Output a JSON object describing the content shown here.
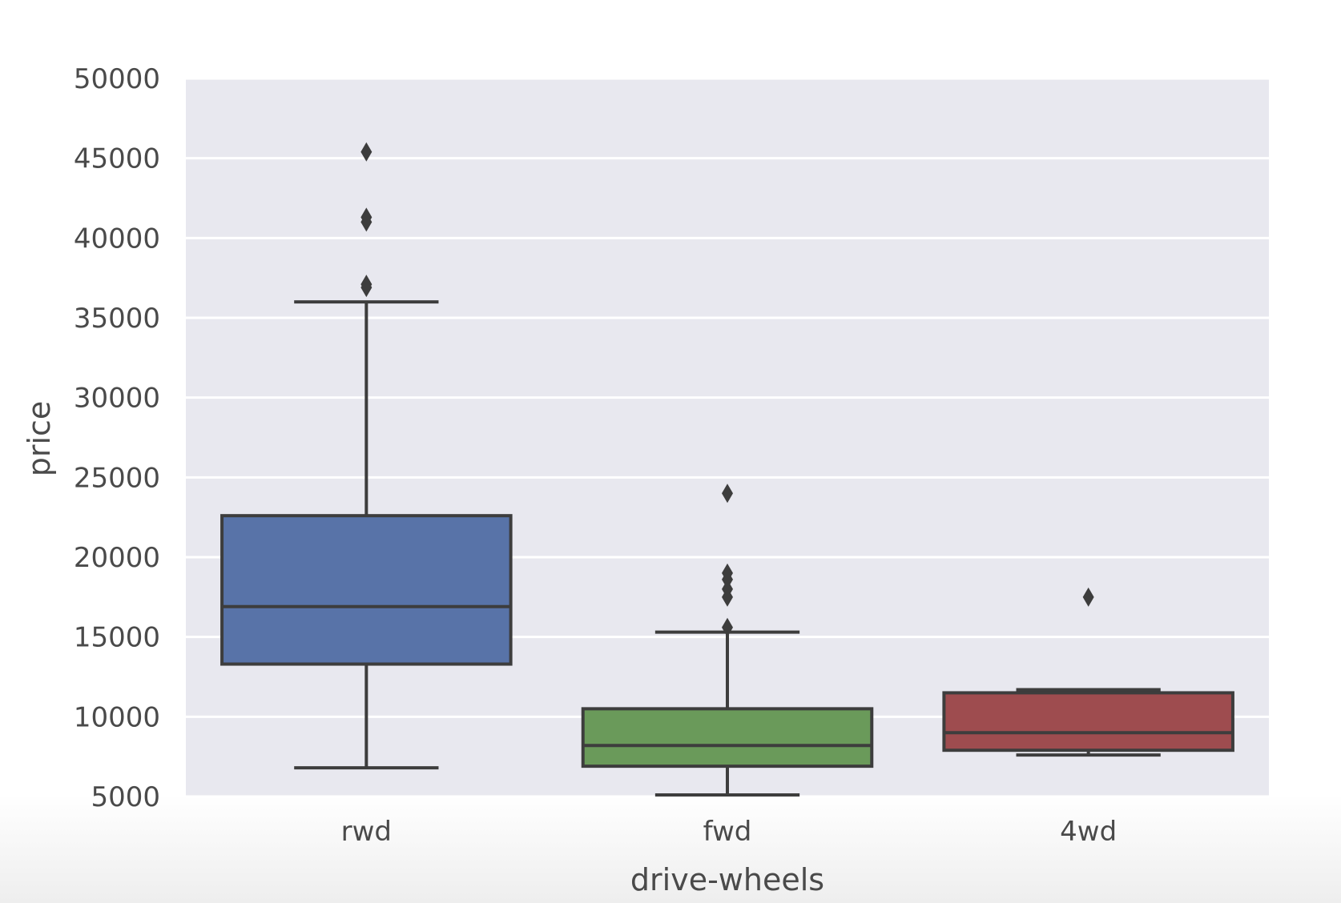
{
  "chart_data": {
    "type": "box",
    "xlabel": "drive-wheels",
    "ylabel": "price",
    "ylim": [
      5000,
      50000
    ],
    "yticks": [
      5000,
      10000,
      15000,
      20000,
      25000,
      30000,
      35000,
      40000,
      45000,
      50000
    ],
    "grid": true,
    "categories": [
      "rwd",
      "fwd",
      "4wd"
    ],
    "boxes": [
      {
        "category": "rwd",
        "color": "#5873a8",
        "whisker_low": 6800,
        "q1": 13300,
        "median": 16900,
        "q3": 22600,
        "whisker_high": 36000,
        "outliers": [
          36900,
          37100,
          41000,
          41300,
          45400
        ]
      },
      {
        "category": "fwd",
        "color": "#6a9a5a",
        "whisker_low": 5100,
        "q1": 6900,
        "median": 8200,
        "q3": 10500,
        "whisker_high": 15300,
        "outliers": [
          15600,
          17500,
          18000,
          18600,
          19000,
          24000
        ]
      },
      {
        "category": "4wd",
        "color": "#9e4c4f",
        "whisker_low": 7600,
        "q1": 7900,
        "median": 9000,
        "q3": 11500,
        "whisker_high": 11700,
        "outliers": [
          17500
        ]
      }
    ]
  }
}
